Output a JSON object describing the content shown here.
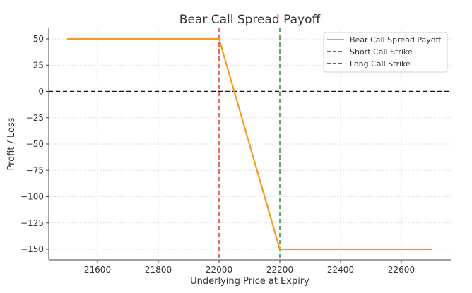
{
  "chart_data": {
    "type": "line",
    "title": "Bear Call Spread Payoff",
    "xlabel": "Underlying Price at Expiry",
    "ylabel": "Profit / Loss",
    "xlim": [
      21450,
      22760
    ],
    "ylim": [
      -160,
      60
    ],
    "x_ticks": [
      21600,
      21800,
      22000,
      22200,
      22400,
      22600
    ],
    "y_ticks": [
      50,
      25,
      0,
      -25,
      -50,
      -75,
      -100,
      -125,
      -150
    ],
    "y_tick_labels": [
      "50",
      "25",
      "0",
      "−25",
      "−50",
      "−75",
      "−100",
      "−125",
      "−150"
    ],
    "grid": true,
    "legend_position": "upper right",
    "series": [
      {
        "name": "Bear Call Spread Payoff",
        "color": "#f39c1f",
        "style": "solid",
        "x": [
          21500,
          22000,
          22200,
          22700
        ],
        "y": [
          50,
          50,
          -150,
          -150
        ]
      }
    ],
    "reference_lines": [
      {
        "name": "Short Call Strike",
        "orientation": "vertical",
        "value": 22000,
        "color": "#e03a2f",
        "style": "dashed"
      },
      {
        "name": "Long Call Strike",
        "orientation": "vertical",
        "value": 22200,
        "color": "#2a8a2a",
        "style": "dashed"
      },
      {
        "name": "Zero line",
        "orientation": "horizontal",
        "value": 0,
        "color": "#111111",
        "style": "dashed"
      }
    ],
    "legend": [
      "Bear Call Spread Payoff",
      "Short Call Strike",
      "Long Call Strike"
    ]
  }
}
